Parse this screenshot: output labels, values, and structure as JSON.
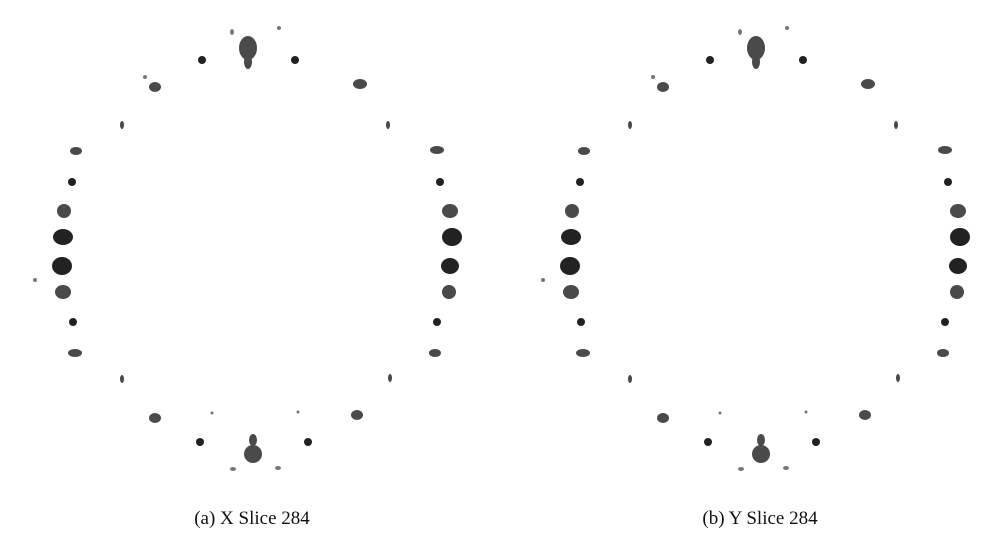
{
  "figure": {
    "panels": [
      {
        "caption": "(a) X Slice 284"
      },
      {
        "caption": "(b) Y Slice 284"
      }
    ]
  }
}
